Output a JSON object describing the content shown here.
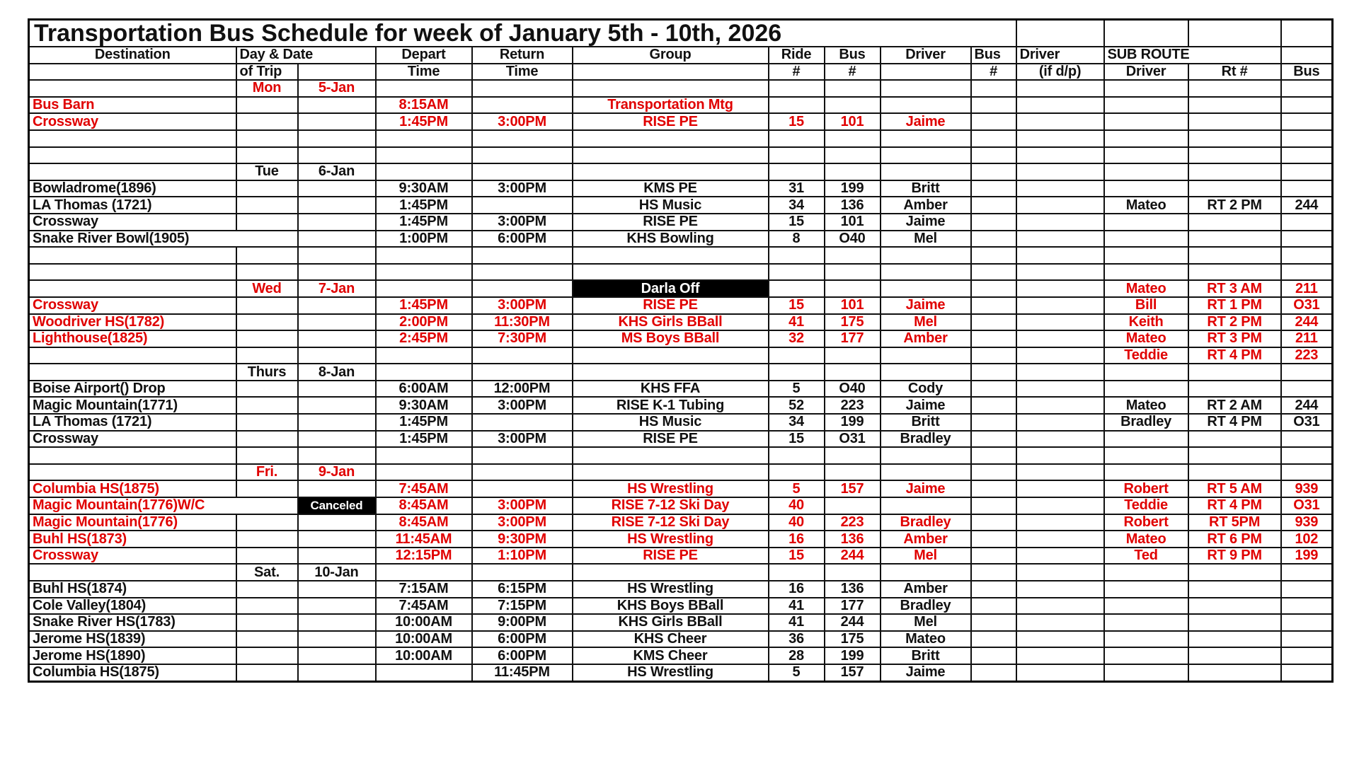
{
  "title": "Transportation Bus Schedule for week of January 5th - 10th, 2026",
  "colors": {
    "red": "#e00000",
    "highlight_bg": "#000000",
    "highlight_text": "#ffffff"
  },
  "header_row1": {
    "destination": "Destination",
    "day_date": "Day & Date",
    "depart": "Depart",
    "return": "Return",
    "group": "Group",
    "ride": "Ride",
    "bus": "Bus",
    "driver": "Driver",
    "bus_no": "Bus",
    "driver_dp": "Driver",
    "sub_route": "SUB ROUTE"
  },
  "header_row2": {
    "of_trip": "of Trip",
    "depart": "Time",
    "return": "Time",
    "ride": "#",
    "bus": "#",
    "bus_no": "#",
    "driver_dp": "(if d/p)",
    "sub_driver": "Driver",
    "sub_rt": "Rt #",
    "sub_bus": "Bus"
  },
  "rows": [
    {
      "red": true,
      "cells": [
        "",
        "Mon",
        "5-Jan",
        "",
        "",
        "",
        "",
        "",
        "",
        "",
        "",
        "",
        "",
        ""
      ]
    },
    {
      "red": true,
      "cells": [
        "Bus Barn",
        "",
        "",
        "8:15AM",
        "",
        "Transportation Mtg",
        "",
        "",
        "",
        "",
        "",
        "",
        "",
        ""
      ]
    },
    {
      "red": true,
      "cells": [
        "Crossway",
        "",
        "",
        "1:45PM",
        "3:00PM",
        "RISE PE",
        "15",
        "101",
        "Jaime",
        "",
        "",
        "",
        "",
        ""
      ]
    },
    {
      "red": false,
      "cells": [
        "",
        "",
        "",
        "",
        "",
        "",
        "",
        "",
        "",
        "",
        "",
        "",
        "",
        ""
      ]
    },
    {
      "red": false,
      "cells": [
        "",
        "",
        "",
        "",
        "",
        "",
        "",
        "",
        "",
        "",
        "",
        "",
        "",
        ""
      ]
    },
    {
      "red": false,
      "cells": [
        "",
        "Tue",
        "6-Jan",
        "",
        "",
        "",
        "",
        "",
        "",
        "",
        "",
        "",
        "",
        ""
      ]
    },
    {
      "red": false,
      "cells": [
        "Bowladrome(1896)",
        "",
        "",
        "9:30AM",
        "3:00PM",
        "KMS PE",
        "31",
        "199",
        "Britt",
        "",
        "",
        "",
        "",
        ""
      ]
    },
    {
      "red": false,
      "cells": [
        "LA Thomas (1721)",
        "",
        "",
        "1:45PM",
        "",
        "HS Music",
        "34",
        "136",
        "Amber",
        "",
        "",
        "Mateo",
        "RT 2 PM",
        "244"
      ]
    },
    {
      "red": false,
      "cells": [
        "Crossway",
        "",
        "",
        "1:45PM",
        "3:00PM",
        "RISE PE",
        "15",
        "101",
        "Jaime",
        "",
        "",
        "",
        "",
        ""
      ]
    },
    {
      "red": false,
      "cells": [
        "Snake River Bowl(1905)",
        "",
        "",
        "1:00PM",
        "6:00PM",
        "KHS Bowling",
        "8",
        "O40",
        "Mel",
        "",
        "",
        "",
        "",
        ""
      ]
    },
    {
      "red": false,
      "cells": [
        "",
        "",
        "",
        "",
        "",
        "",
        "",
        "",
        "",
        "",
        "",
        "",
        "",
        ""
      ]
    },
    {
      "red": false,
      "cells": [
        "",
        "",
        "",
        "",
        "",
        "",
        "",
        "",
        "",
        "",
        "",
        "",
        "",
        ""
      ]
    },
    {
      "red": true,
      "highlight": 5,
      "cells": [
        "",
        "Wed",
        "7-Jan",
        "",
        "",
        "Darla Off",
        "",
        "",
        "",
        "",
        "",
        "Mateo",
        "RT 3 AM",
        "211"
      ]
    },
    {
      "red": true,
      "cells": [
        "Crossway",
        "",
        "",
        "1:45PM",
        "3:00PM",
        "RISE PE",
        "15",
        "101",
        "Jaime",
        "",
        "",
        "Bill",
        "RT 1 PM",
        "O31"
      ]
    },
    {
      "red": true,
      "cells": [
        "Woodriver HS(1782)",
        "",
        "",
        "2:00PM",
        "11:30PM",
        "KHS Girls BBall",
        "41",
        "175",
        "Mel",
        "",
        "",
        "Keith",
        "RT 2 PM",
        "244"
      ]
    },
    {
      "red": true,
      "cells": [
        "Lighthouse(1825)",
        "",
        "",
        "2:45PM",
        "7:30PM",
        "MS Boys BBall",
        "32",
        "177",
        "Amber",
        "",
        "",
        "Mateo",
        "RT 3 PM",
        "211"
      ]
    },
    {
      "red": true,
      "cells": [
        "",
        "",
        "",
        "",
        "",
        "",
        "",
        "",
        "",
        "",
        "",
        "Teddie",
        "RT 4 PM",
        "223"
      ]
    },
    {
      "red": false,
      "cells": [
        "",
        "Thurs",
        "8-Jan",
        "",
        "",
        "",
        "",
        "",
        "",
        "",
        "",
        "",
        "",
        ""
      ]
    },
    {
      "red": false,
      "cells": [
        "Boise Airport() Drop",
        "",
        "",
        "6:00AM",
        "12:00PM",
        "KHS FFA",
        "5",
        "O40",
        "Cody",
        "",
        "",
        "",
        "",
        ""
      ]
    },
    {
      "red": false,
      "cells": [
        "Magic Mountain(1771)",
        "",
        "",
        "9:30AM",
        "3:00PM",
        "RISE K-1 Tubing",
        "52",
        "223",
        "Jaime",
        "",
        "",
        "Mateo",
        "RT 2 AM",
        "244"
      ]
    },
    {
      "red": false,
      "cells": [
        "LA Thomas (1721)",
        "",
        "",
        "1:45PM",
        "",
        "HS Music",
        "34",
        "199",
        "Britt",
        "",
        "",
        "Bradley",
        "RT 4 PM",
        "O31"
      ]
    },
    {
      "red": false,
      "cells": [
        "Crossway",
        "",
        "",
        "1:45PM",
        "3:00PM",
        "RISE PE",
        "15",
        "O31",
        "Bradley",
        "",
        "",
        "",
        "",
        ""
      ]
    },
    {
      "red": false,
      "cells": [
        "",
        "",
        "",
        "",
        "",
        "",
        "",
        "",
        "",
        "",
        "",
        "",
        "",
        ""
      ]
    },
    {
      "red": true,
      "cells": [
        "",
        "Fri.",
        "9-Jan",
        "",
        "",
        "",
        "",
        "",
        "",
        "",
        "",
        "",
        "",
        ""
      ]
    },
    {
      "red": true,
      "cells": [
        "Columbia HS(1875)",
        "",
        "",
        "7:45AM",
        "",
        "HS Wrestling",
        "5",
        "157",
        "Jaime",
        "",
        "",
        "Robert",
        "RT 5 AM",
        "939"
      ]
    },
    {
      "red": true,
      "highlight": 2,
      "cells": [
        "Magic Mountain(1776)W/C",
        "",
        "Canceled",
        "8:45AM",
        "3:00PM",
        "RISE 7-12 Ski Day",
        "40",
        "",
        "",
        "",
        "",
        "Teddie",
        "RT 4 PM",
        "O31"
      ]
    },
    {
      "red": true,
      "cells": [
        "Magic Mountain(1776)",
        "",
        "",
        "8:45AM",
        "3:00PM",
        "RISE 7-12 Ski Day",
        "40",
        "223",
        "Bradley",
        "",
        "",
        "Robert",
        "RT 5PM",
        "939"
      ]
    },
    {
      "red": true,
      "cells": [
        "Buhl HS(1873)",
        "",
        "",
        "11:45AM",
        "9:30PM",
        "HS Wrestling",
        "16",
        "136",
        "Amber",
        "",
        "",
        "Mateo",
        "RT 6 PM",
        "102"
      ]
    },
    {
      "red": true,
      "cells": [
        "Crossway",
        "",
        "",
        "12:15PM",
        "1:10PM",
        "RISE PE",
        "15",
        "244",
        "Mel",
        "",
        "",
        "Ted",
        "RT 9 PM",
        "199"
      ]
    },
    {
      "red": false,
      "cells": [
        "",
        "Sat.",
        "10-Jan",
        "",
        "",
        "",
        "",
        "",
        "",
        "",
        "",
        "",
        "",
        ""
      ]
    },
    {
      "red": false,
      "cells": [
        "Buhl HS(1874)",
        "",
        "",
        "7:15AM",
        "6:15PM",
        "HS Wrestling",
        "16",
        "136",
        "Amber",
        "",
        "",
        "",
        "",
        ""
      ]
    },
    {
      "red": false,
      "cells": [
        "Cole Valley(1804)",
        "",
        "",
        "7:45AM",
        "7:15PM",
        "KHS Boys BBall",
        "41",
        "177",
        "Bradley",
        "",
        "",
        "",
        "",
        ""
      ]
    },
    {
      "red": false,
      "cells": [
        "Snake River HS(1783)",
        "",
        "",
        "10:00AM",
        "9:00PM",
        "KHS Girls BBall",
        "41",
        "244",
        "Mel",
        "",
        "",
        "",
        "",
        ""
      ]
    },
    {
      "red": false,
      "cells": [
        "Jerome HS(1839)",
        "",
        "",
        "10:00AM",
        "6:00PM",
        "KHS Cheer",
        "36",
        "175",
        "Mateo",
        "",
        "",
        "",
        "",
        ""
      ]
    },
    {
      "red": false,
      "cells": [
        "Jerome HS(1890)",
        "",
        "",
        "10:00AM",
        "6:00PM",
        "KMS Cheer",
        "28",
        "199",
        "Britt",
        "",
        "",
        "",
        "",
        ""
      ]
    },
    {
      "red": false,
      "cells": [
        "Columbia HS(1875)",
        "",
        "",
        "",
        "11:45PM",
        "HS Wrestling",
        "5",
        "157",
        "Jaime",
        "",
        "",
        "",
        "",
        ""
      ]
    }
  ]
}
